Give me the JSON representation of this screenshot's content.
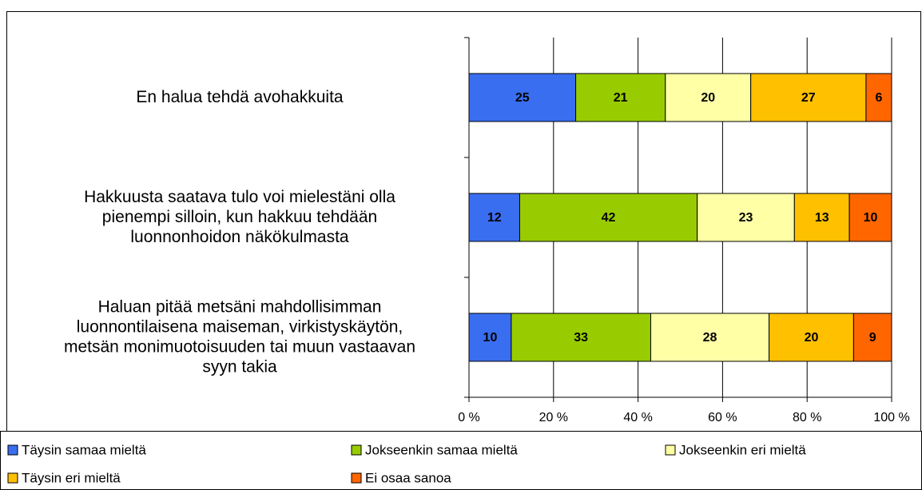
{
  "chart_data": {
    "type": "bar",
    "orientation": "horizontal",
    "stacked": "percent",
    "categories": [
      "En halua tehdä avohakkuita",
      "Hakkuusta saatava tulo voi mielestäni olla\npienempi silloin, kun hakkuu tehdään\nluonnonhoidon näkökulmasta",
      "Haluan pitää metsäni mahdollisimman\nluonnontilaisena maiseman, virkistyskäytön,\nmetsän monimuotoisuuden tai muun vastaavan\nsyyn takia"
    ],
    "series": [
      {
        "name": "Täysin samaa mieltä",
        "color": "#3a6ef0",
        "values": [
          25,
          12,
          10
        ]
      },
      {
        "name": "Jokseenkin samaa mieltä",
        "color": "#99cc00",
        "values": [
          21,
          42,
          33
        ]
      },
      {
        "name": "Jokseenkin eri mieltä",
        "color": "#ffffa6",
        "values": [
          20,
          23,
          28
        ]
      },
      {
        "name": "Täysin eri mieltä",
        "color": "#ffc000",
        "values": [
          27,
          13,
          20
        ]
      },
      {
        "name": "Ei osaa sanoa",
        "color": "#ff6600",
        "values": [
          6,
          10,
          9
        ]
      }
    ],
    "xlim": [
      0,
      100
    ],
    "xticks": [
      {
        "value": 0,
        "label": "0 %"
      },
      {
        "value": 20,
        "label": "20 %"
      },
      {
        "value": 40,
        "label": "40 %"
      },
      {
        "value": 60,
        "label": "60 %"
      },
      {
        "value": 80,
        "label": "80 %"
      },
      {
        "value": 100,
        "label": "100 %"
      }
    ],
    "grid": true,
    "legend": "bottom"
  }
}
